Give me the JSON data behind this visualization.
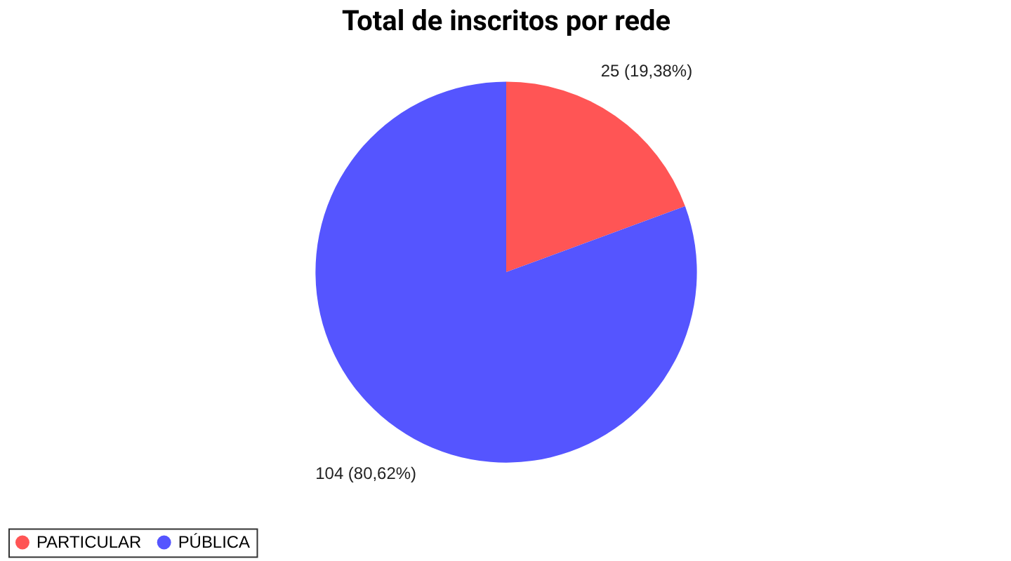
{
  "chart_data": {
    "type": "pie",
    "title": "Total de inscritos por rede",
    "categories": [
      "PARTICULAR",
      "PÚBLICA"
    ],
    "values": [
      25,
      104
    ],
    "colors": [
      "#ff5555",
      "#5555ff"
    ],
    "value_labels": [
      "25 (19,38%)",
      "104 (80,62%)"
    ],
    "legend": "bottom"
  }
}
